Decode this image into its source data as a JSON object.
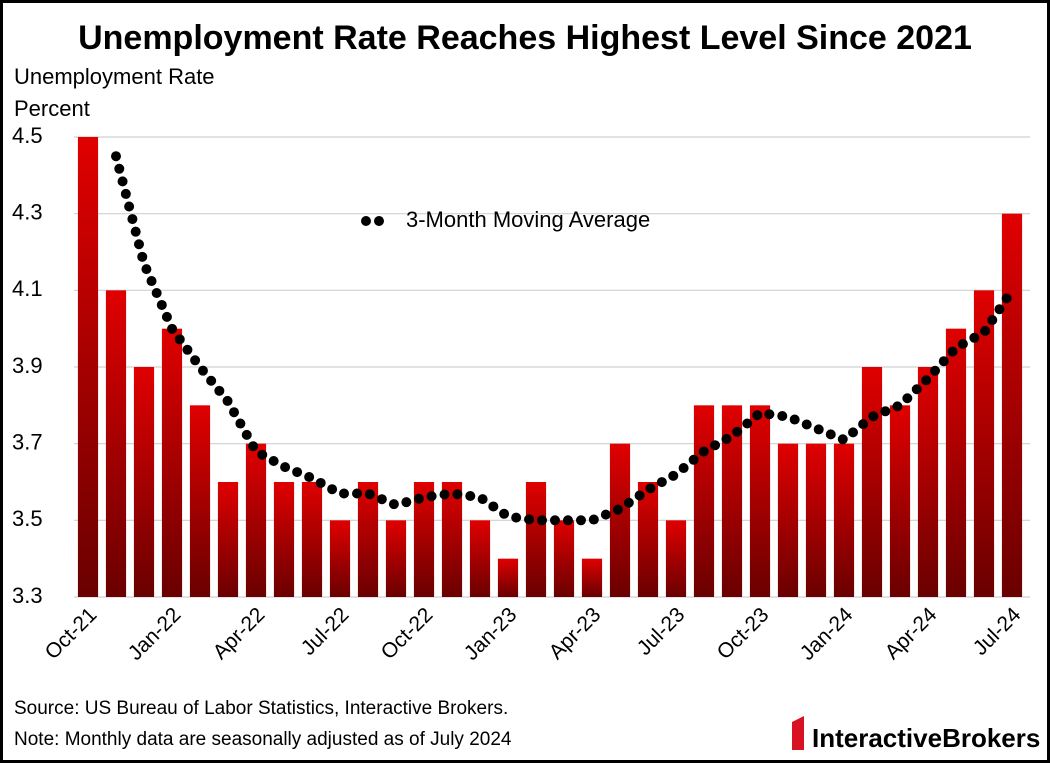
{
  "chart_data": {
    "type": "bar",
    "title": "Unemployment Rate Reaches Highest Level Since 2021",
    "subtitle": "Unemployment Rate",
    "y_label": "Percent",
    "categories": [
      "Oct-21",
      null,
      null,
      "Jan-22",
      null,
      null,
      "Apr-22",
      null,
      null,
      "Jul-22",
      null,
      null,
      "Oct-22",
      null,
      null,
      "Jan-23",
      null,
      null,
      "Apr-23",
      null,
      null,
      "Jul-23",
      null,
      null,
      "Oct-23",
      null,
      null,
      "Jan-24",
      null,
      null,
      "Apr-24",
      null,
      null,
      "Jul-24"
    ],
    "series": [
      {
        "name": "Unemployment Rate",
        "type": "bar",
        "color": "#e00000",
        "values": [
          4.5,
          4.1,
          3.9,
          4.0,
          3.8,
          3.6,
          3.7,
          3.6,
          3.6,
          3.5,
          3.6,
          3.5,
          3.6,
          3.6,
          3.5,
          3.4,
          3.6,
          3.5,
          3.4,
          3.7,
          3.6,
          3.5,
          3.8,
          3.8,
          3.8,
          3.7,
          3.7,
          3.7,
          3.9,
          3.8,
          3.9,
          4.0,
          4.1,
          4.3
        ]
      },
      {
        "name": "3-Month Moving Average",
        "type": "line",
        "color": "#000000",
        "values": [
          null,
          4.45,
          4.17,
          4.0,
          3.9,
          3.81,
          3.68,
          3.64,
          3.61,
          3.57,
          3.57,
          3.54,
          3.56,
          3.57,
          3.56,
          3.51,
          3.5,
          3.5,
          3.5,
          3.53,
          3.58,
          3.62,
          3.68,
          3.72,
          3.78,
          3.77,
          3.74,
          3.71,
          3.77,
          3.8,
          3.87,
          3.95,
          3.99,
          4.1
        ]
      }
    ],
    "ylim": [
      3.3,
      4.5
    ],
    "yticks": [
      3.3,
      3.5,
      3.7,
      3.9,
      4.1,
      4.3,
      4.5
    ],
    "grid": true,
    "source": "Source: US Bureau of Labor Statistics, Interactive Brokers.",
    "note": "Note: Monthly data are seasonally adjusted as of July 2024",
    "logo": "InteractiveBrokers"
  }
}
